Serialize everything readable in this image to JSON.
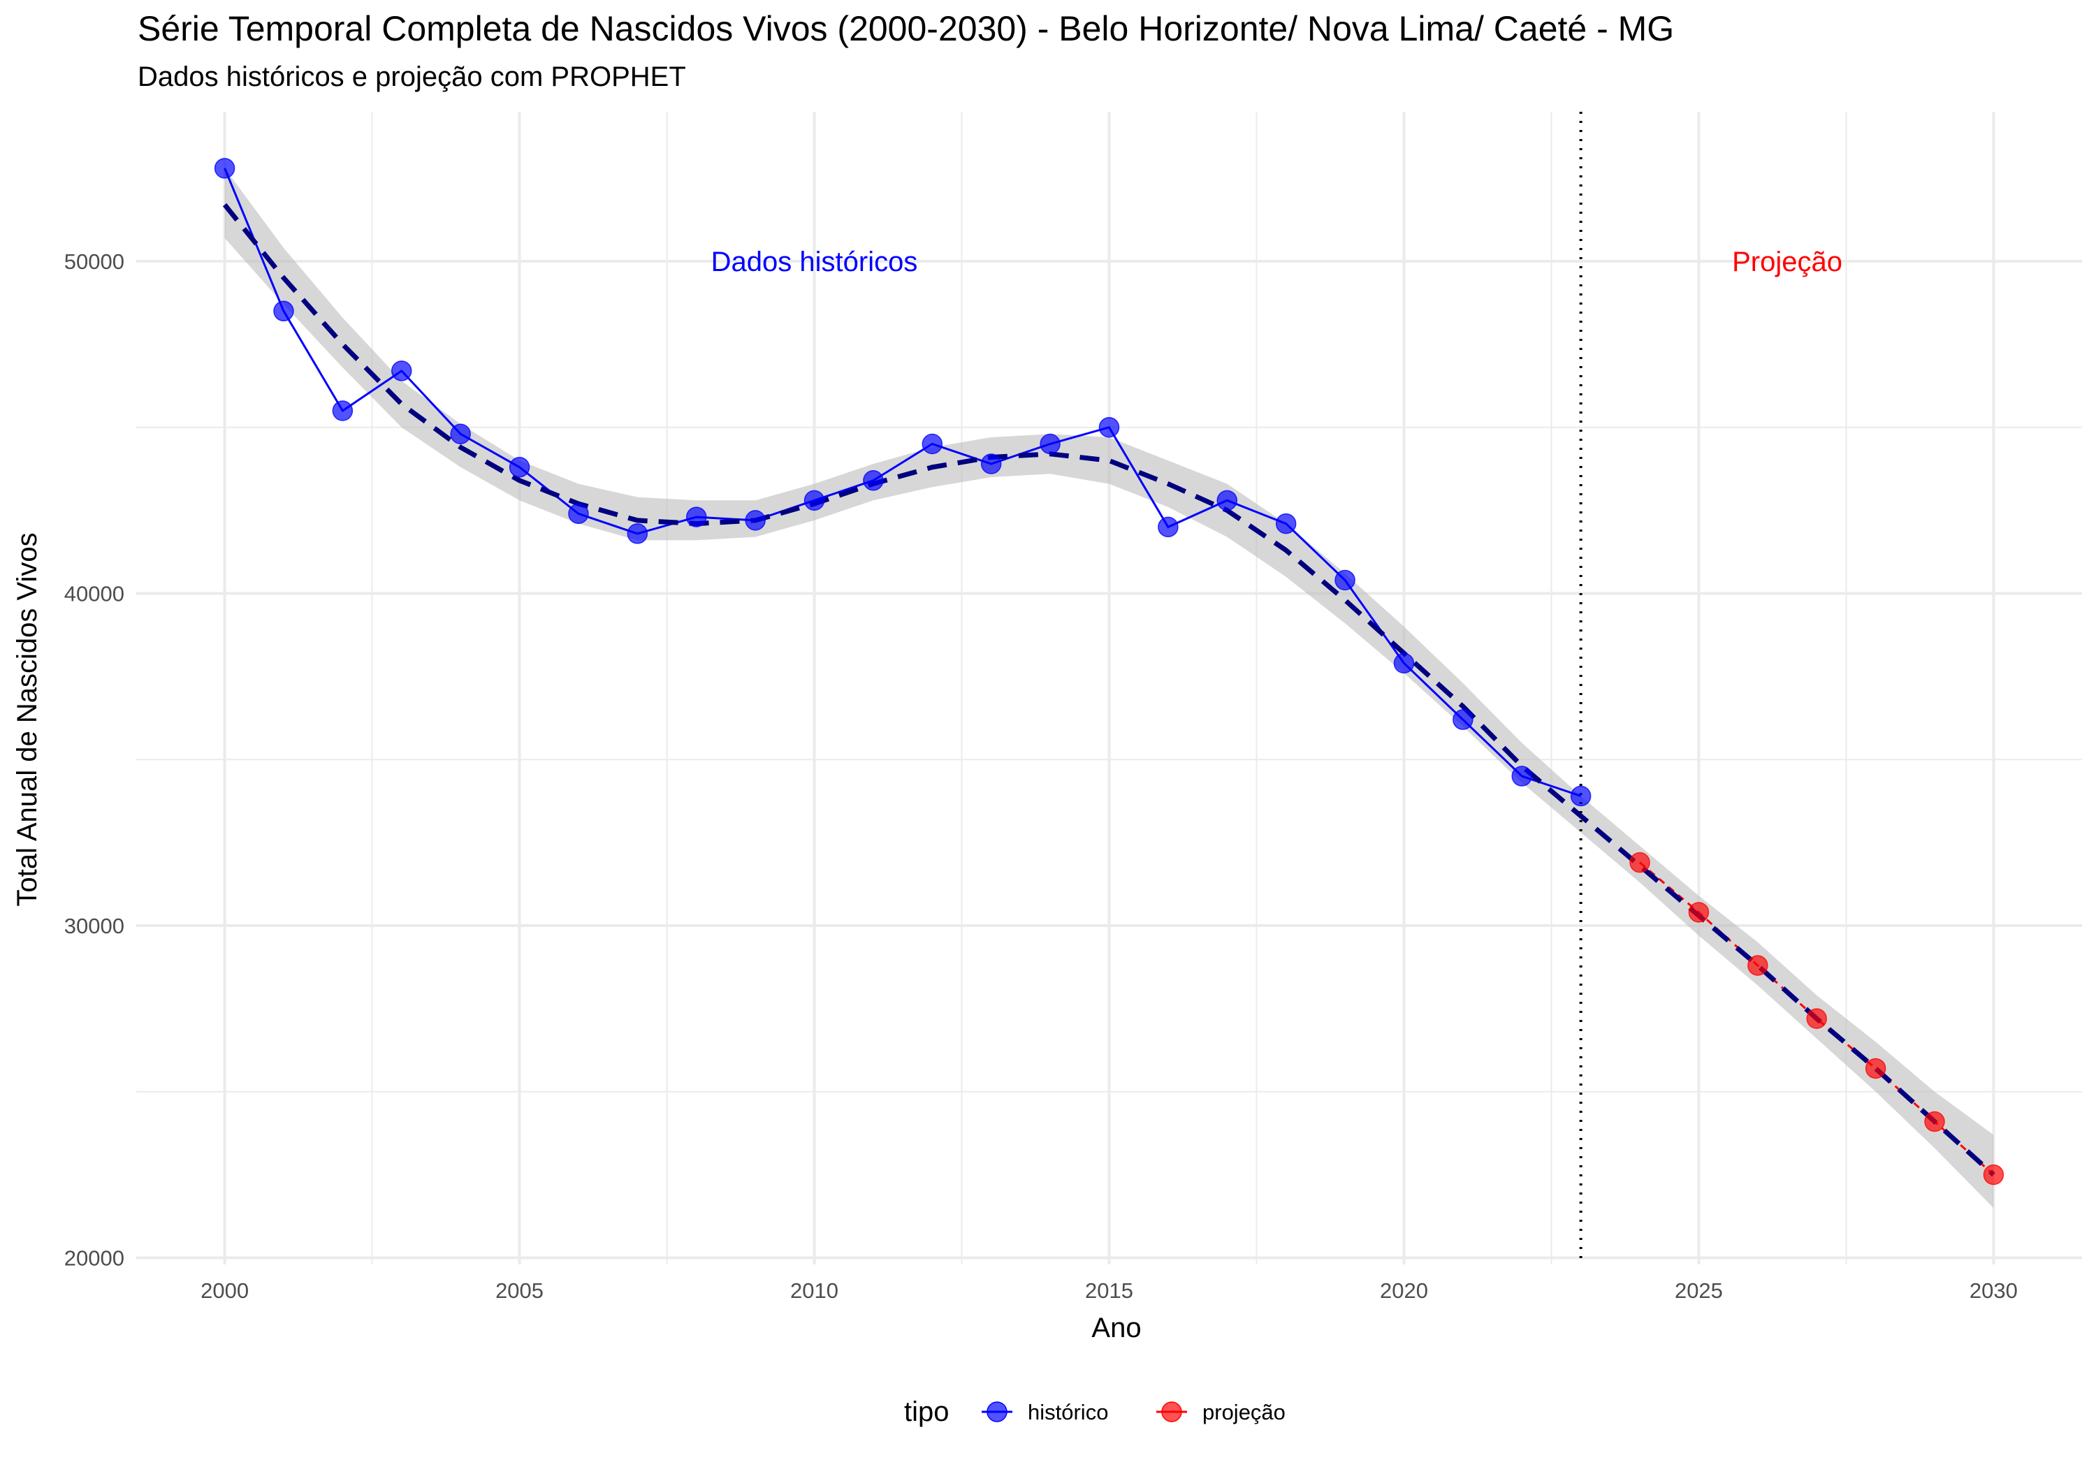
{
  "chart_data": {
    "type": "line",
    "title": "Série Temporal Completa de Nascidos Vivos (2000-2030) -  Belo Horizonte/ Nova Lima/ Caeté - MG",
    "subtitle": "Dados históricos e projeção com PROPHET",
    "xlabel": "Ano",
    "ylabel": "Total Anual de Nascidos Vivos",
    "xlim": [
      1998.5,
      2031.5
    ],
    "ylim": [
      19800,
      54500
    ],
    "x_ticks": [
      2000,
      2005,
      2010,
      2015,
      2020,
      2025,
      2030
    ],
    "y_ticks": [
      20000,
      30000,
      40000,
      50000
    ],
    "grid": true,
    "divider_x": 2023,
    "annotations": [
      {
        "text": "Dados históricos",
        "x": 2010,
        "y": 50000,
        "color": "#0000ff"
      },
      {
        "text": "Projeção",
        "x": 2026.5,
        "y": 50000,
        "color": "#ff0000"
      }
    ],
    "legend": {
      "title": "tipo",
      "position": "bottom",
      "entries": [
        {
          "label": "histórico",
          "color": "#0000ff"
        },
        {
          "label": "projeção",
          "color": "#ff0000"
        }
      ]
    },
    "series": [
      {
        "name": "histórico",
        "color": "#0000ff",
        "x": [
          2000,
          2001,
          2002,
          2003,
          2004,
          2005,
          2006,
          2007,
          2008,
          2009,
          2010,
          2011,
          2012,
          2013,
          2014,
          2015,
          2016,
          2017,
          2018,
          2019,
          2020,
          2021,
          2022,
          2023
        ],
        "values": [
          52800,
          48500,
          45500,
          46700,
          44800,
          43800,
          42400,
          41800,
          42300,
          42200,
          42800,
          43400,
          44500,
          43900,
          44500,
          45000,
          42000,
          42800,
          42100,
          40400,
          37900,
          36200,
          34500,
          33900
        ]
      },
      {
        "name": "projeção",
        "color": "#ff0000",
        "x": [
          2024,
          2025,
          2026,
          2027,
          2028,
          2029,
          2030
        ],
        "values": [
          31900,
          30400,
          28800,
          27200,
          25700,
          24100,
          22500
        ]
      }
    ],
    "fit": {
      "color": "#000080",
      "x": [
        2000,
        2001,
        2002,
        2003,
        2004,
        2005,
        2006,
        2007,
        2008,
        2009,
        2010,
        2011,
        2012,
        2013,
        2014,
        2015,
        2016,
        2017,
        2018,
        2019,
        2020,
        2021,
        2022,
        2023,
        2024,
        2025,
        2026,
        2027,
        2028,
        2029,
        2030
      ],
      "values": [
        51700,
        49500,
        47500,
        45700,
        44400,
        43400,
        42700,
        42200,
        42100,
        42200,
        42700,
        43300,
        43800,
        44100,
        44200,
        44000,
        43300,
        42500,
        41300,
        39800,
        38200,
        36600,
        34800,
        33300,
        31800,
        30300,
        28800,
        27200,
        25700,
        24100,
        22500
      ],
      "lower": [
        50700,
        48700,
        46800,
        45000,
        43800,
        42800,
        42100,
        41600,
        41600,
        41700,
        42200,
        42800,
        43200,
        43500,
        43600,
        43300,
        42600,
        41700,
        40500,
        39100,
        37600,
        36000,
        34300,
        32800,
        31300,
        29700,
        28200,
        26600,
        25000,
        23300,
        21500
      ],
      "upper": [
        52800,
        50400,
        48300,
        46400,
        45100,
        44000,
        43300,
        42900,
        42800,
        42800,
        43300,
        43900,
        44400,
        44700,
        44800,
        44700,
        44000,
        43300,
        42100,
        40600,
        39000,
        37300,
        35500,
        33900,
        32400,
        30900,
        29500,
        27900,
        26500,
        25000,
        23700
      ]
    }
  }
}
